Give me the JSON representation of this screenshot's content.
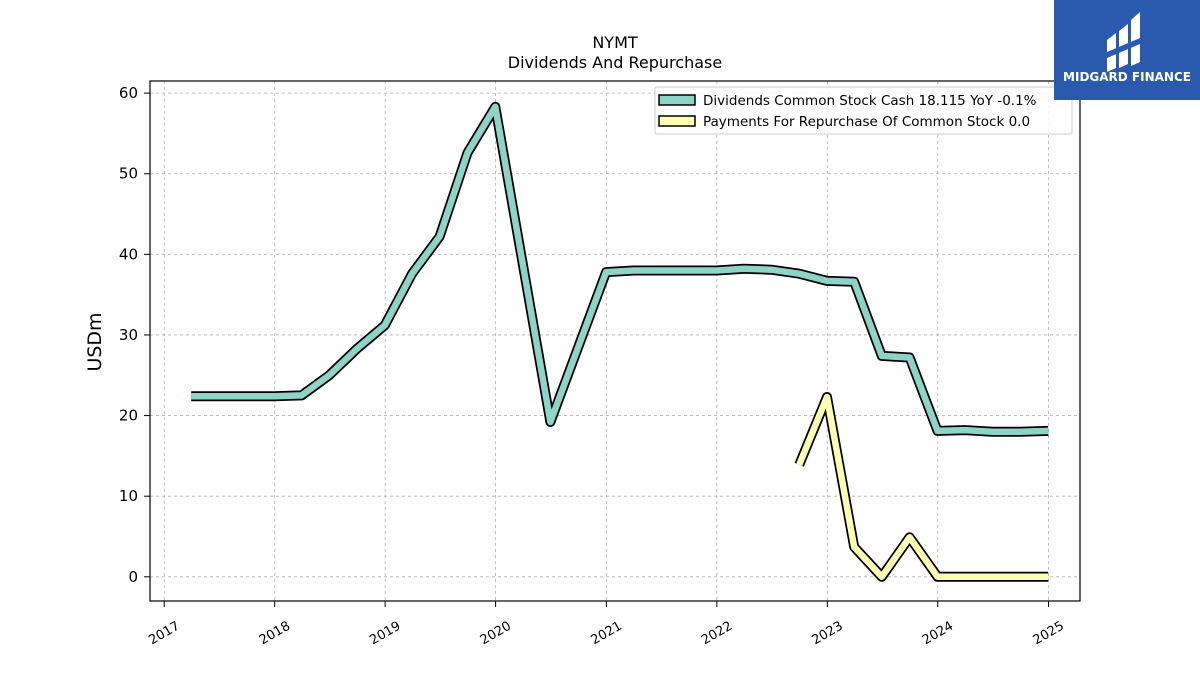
{
  "chart_data": {
    "type": "line",
    "title": "NYMT",
    "subtitle": "Dividends And Repurchase",
    "xlabel": "",
    "ylabel": "USDm",
    "ylim": [
      -3,
      61.5
    ],
    "xlim": [
      "2016-11-15",
      "2025-04-15"
    ],
    "yticks": [
      0,
      10,
      20,
      30,
      40,
      50,
      60
    ],
    "xticks": [
      "2017-01-01",
      "2018-01-01",
      "2019-01-01",
      "2020-01-01",
      "2021-01-01",
      "2022-01-01",
      "2023-01-01",
      "2024-01-01",
      "2025-01-01"
    ],
    "xtick_labels": [
      "2017",
      "2018",
      "2019",
      "2020",
      "2021",
      "2022",
      "2023",
      "2024",
      "2025"
    ],
    "grid": true,
    "legend_position": "top-right",
    "series": [
      {
        "name": "Dividends Common Stock Cash  18.115 YoY -0.1%",
        "color": "#8dd3c7",
        "points": [
          [
            "2017-03-31",
            22.4
          ],
          [
            "2017-06-30",
            22.4
          ],
          [
            "2017-09-30",
            22.4
          ],
          [
            "2017-12-31",
            22.4
          ],
          [
            "2018-03-31",
            22.5
          ],
          [
            "2018-06-30",
            25.0
          ],
          [
            "2018-09-30",
            28.3
          ],
          [
            "2018-12-31",
            31.2
          ],
          [
            "2019-03-31",
            37.6
          ],
          [
            "2019-06-30",
            42.2
          ],
          [
            "2019-09-30",
            52.6
          ],
          [
            "2019-12-31",
            58.3
          ],
          [
            "2020-06-30",
            19.2
          ],
          [
            "2020-12-31",
            37.8
          ],
          [
            "2021-03-31",
            38.0
          ],
          [
            "2021-06-30",
            38.0
          ],
          [
            "2021-09-30",
            38.0
          ],
          [
            "2021-12-31",
            38.0
          ],
          [
            "2022-03-31",
            38.2
          ],
          [
            "2022-06-30",
            38.1
          ],
          [
            "2022-09-30",
            37.6
          ],
          [
            "2022-12-31",
            36.7
          ],
          [
            "2023-03-31",
            36.6
          ],
          [
            "2023-06-30",
            27.4
          ],
          [
            "2023-09-30",
            27.2
          ],
          [
            "2023-12-31",
            18.1
          ],
          [
            "2024-03-31",
            18.2
          ],
          [
            "2024-06-30",
            18.0
          ],
          [
            "2024-09-30",
            18.0
          ],
          [
            "2024-12-31",
            18.1
          ]
        ]
      },
      {
        "name": "Payments For Repurchase Of Common Stock  0.0",
        "color": "#ffffb3",
        "points": [
          [
            "2022-09-30",
            13.9
          ],
          [
            "2022-12-31",
            22.3
          ],
          [
            "2023-03-31",
            3.7
          ],
          [
            "2023-06-30",
            0.0
          ],
          [
            "2023-09-30",
            4.9
          ],
          [
            "2023-12-31",
            0.0
          ],
          [
            "2024-03-31",
            0.0
          ],
          [
            "2024-06-30",
            0.0
          ],
          [
            "2024-09-30",
            0.0
          ],
          [
            "2024-12-31",
            0.0
          ]
        ]
      }
    ]
  },
  "logo": {
    "text": "MIDGARD FINANCE",
    "bg_color": "#2a5aae"
  }
}
